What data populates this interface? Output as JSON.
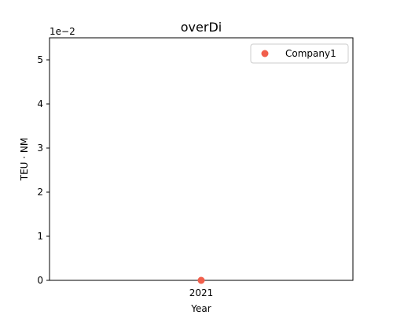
{
  "chart_data": {
    "type": "scatter",
    "title": "overDi",
    "xlabel": "Year",
    "ylabel": "TEU · NM",
    "y_scale_label": "1e−2",
    "ylim": [
      0,
      0.055
    ],
    "yticks": [
      0,
      0.01,
      0.02,
      0.03,
      0.04,
      0.05
    ],
    "ytick_labels": [
      "0",
      "1",
      "2",
      "3",
      "4",
      "5"
    ],
    "x_categories": [
      "2021"
    ],
    "grid": false,
    "legend_position": "top-right",
    "series": [
      {
        "name": "Company1",
        "color": "#f15f4c",
        "points": [
          {
            "x": "2021",
            "y": 0
          }
        ]
      }
    ]
  }
}
